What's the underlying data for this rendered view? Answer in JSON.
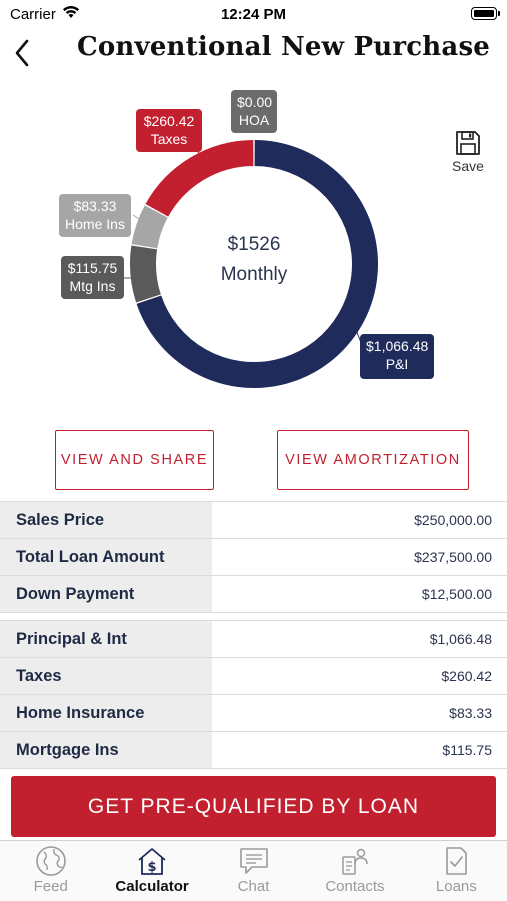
{
  "status_bar": {
    "carrier": "Carrier",
    "time": "12:24 PM"
  },
  "header": {
    "title": "Conventional New Purchase"
  },
  "summary": {
    "amount": "$1526",
    "label": "Monthly"
  },
  "breakdown": {
    "hoa": {
      "amount": "$0.00",
      "label": "HOA",
      "value": 0.0,
      "color": "#6b6b6b"
    },
    "taxes": {
      "amount": "$260.42",
      "label": "Taxes",
      "value": 260.42,
      "color": "#c2202f"
    },
    "home_ins": {
      "amount": "$83.33",
      "label": "Home Ins",
      "value": 83.33,
      "color": "#a6a6a6"
    },
    "mtg_ins": {
      "amount": "$115.75",
      "label": "Mtg Ins",
      "value": 115.75,
      "color": "#5a5a5a"
    },
    "pi": {
      "amount": "$1,066.48",
      "label": "P&I",
      "value": 1066.48,
      "color": "#1f2b5b"
    }
  },
  "save": {
    "label": "Save"
  },
  "buttons": {
    "view_share": "VIEW AND SHARE",
    "view_amortization": "VIEW AMORTIZATION"
  },
  "loan_table": [
    {
      "label": "Sales Price",
      "value": "$250,000.00"
    },
    {
      "label": "Total Loan Amount",
      "value": "$237,500.00"
    },
    {
      "label": "Down Payment",
      "value": "$12,500.00"
    }
  ],
  "payment_table": [
    {
      "label": "Principal & Int",
      "value": "$1,066.48"
    },
    {
      "label": "Taxes",
      "value": "$260.42"
    },
    {
      "label": "Home Insurance",
      "value": "$83.33"
    },
    {
      "label": "Mortgage Ins",
      "value": "$115.75"
    }
  ],
  "cta": {
    "label": "GET PRE-QUALIFIED BY LOAN"
  },
  "tabs": [
    {
      "label": "Feed",
      "icon": "globe-icon"
    },
    {
      "label": "Calculator",
      "icon": "calculator-icon",
      "active": true
    },
    {
      "label": "Chat",
      "icon": "chat-icon"
    },
    {
      "label": "Contacts",
      "icon": "contacts-icon"
    },
    {
      "label": "Loans",
      "icon": "loans-icon"
    }
  ]
}
